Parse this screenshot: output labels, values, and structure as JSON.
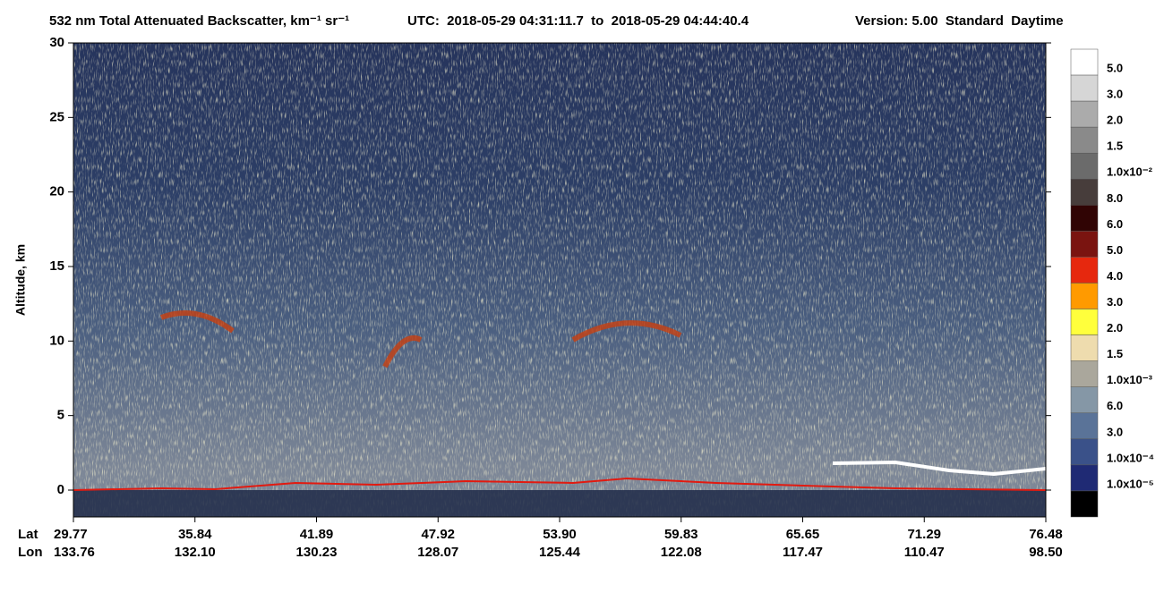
{
  "chart_data": {
    "type": "curtain",
    "title": "532 nm Total Attenuated Backscatter, km⁻¹ sr⁻¹",
    "time_range": "UTC:  2018-05-29 04:31:11.7  to  2018-05-29 04:44:40.4",
    "version": "Version: 5.00  Standard  Daytime",
    "ylabel": "Altitude, km",
    "ylim": [
      -1.8,
      30
    ],
    "yticks": [
      0,
      5,
      10,
      15,
      20,
      25,
      30
    ],
    "x_rows": [
      {
        "name": "Lat",
        "labels": [
          "29.77",
          "35.84",
          "41.89",
          "47.92",
          "53.90",
          "59.83",
          "65.65",
          "71.29",
          "76.48"
        ]
      },
      {
        "name": "Lon",
        "labels": [
          "133.76",
          "132.10",
          "130.23",
          "128.07",
          "125.44",
          "122.08",
          "117.47",
          "110.47",
          "98.50"
        ]
      }
    ],
    "colorbar": {
      "labels": [
        "5.0",
        "3.0",
        "2.0",
        "1.5",
        "1.0x10⁻²",
        "8.0",
        "6.0",
        "5.0",
        "4.0",
        "3.0",
        "2.0",
        "1.5",
        "1.0x10⁻³",
        "6.0",
        "3.0",
        "1.0x10⁻⁴",
        "1.0x10⁻⁵"
      ],
      "colors": [
        "#ffffff",
        "#d6d6d6",
        "#ababab",
        "#8a8a8a",
        "#6b6b6b",
        "#473d3b",
        "#300404",
        "#7a1410",
        "#e6280e",
        "#ff9a00",
        "#ffff3c",
        "#eedcae",
        "#aaa79c",
        "#8597a6",
        "#5a7398",
        "#3a5189",
        "#1f2a74",
        "#000000"
      ]
    }
  }
}
